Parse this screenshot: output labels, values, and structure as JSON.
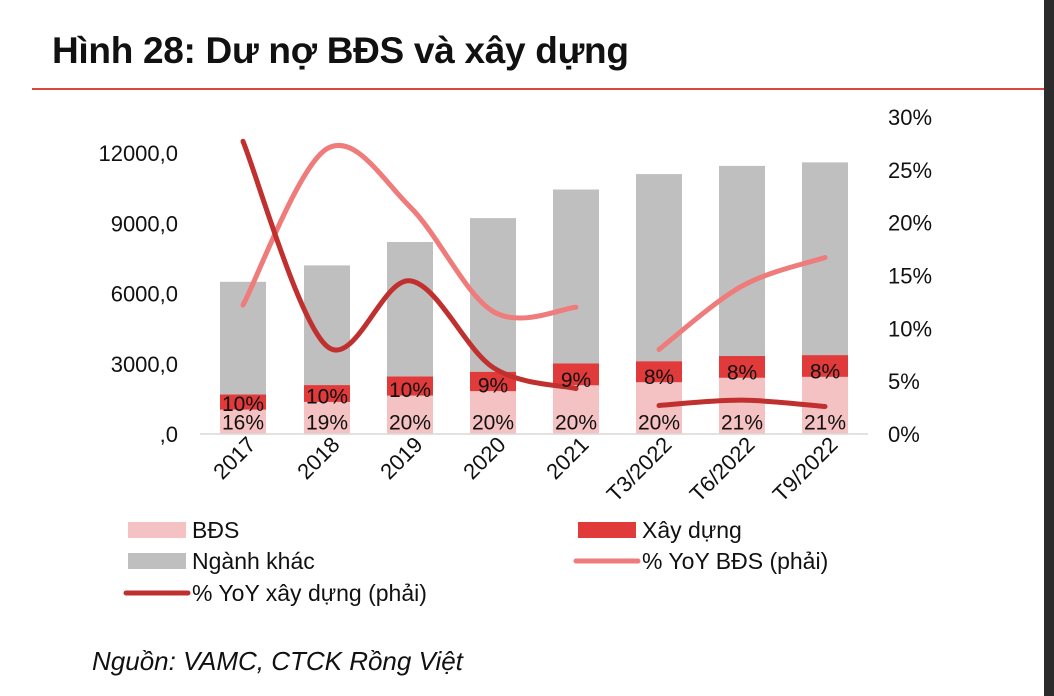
{
  "header": {
    "title": "Hình 28: Dư nợ BĐS và xây dựng"
  },
  "footer": {
    "source": "Nguồn: VAMC, CTCK Rồng Việt"
  },
  "chart_data": {
    "type": "bar",
    "categories": [
      "2017",
      "2018",
      "2019",
      "2020",
      "2021",
      "T3/2022",
      "T6/2022",
      "T9/2022"
    ],
    "series": [
      {
        "name": "BĐS",
        "kind": "stacked-bar",
        "color": "#f4c2c2",
        "values": [
          1040,
          1370,
          1640,
          1830,
          2080,
          2210,
          2400,
          2440
        ],
        "share_labels": [
          "16%",
          "19%",
          "20%",
          "20%",
          "20%",
          "20%",
          "21%",
          "21%"
        ]
      },
      {
        "name": "Xây dựng",
        "kind": "stacked-bar",
        "color": "#e03a3a",
        "values": [
          650,
          720,
          820,
          830,
          940,
          900,
          930,
          930
        ],
        "share_labels": [
          "10%",
          "10%",
          "10%",
          "9%",
          "9%",
          "8%",
          "8%",
          "8%"
        ]
      },
      {
        "name": "Ngành khác",
        "kind": "stacked-bar",
        "color": "#bfbfbf",
        "values": [
          4810,
          5110,
          5740,
          6560,
          7420,
          7990,
          8120,
          8230
        ]
      },
      {
        "name": "% YoY BĐS (phải)",
        "kind": "line",
        "axis": "right",
        "color": "#ef7b7b",
        "values": [
          0.122,
          0.27,
          0.215,
          0.116,
          0.12,
          0.08,
          0.14,
          0.167
        ]
      },
      {
        "name": "% YoY xây dựng (phải)",
        "kind": "line",
        "axis": "right",
        "color": "#c0302e",
        "values": [
          0.277,
          0.083,
          0.145,
          0.063,
          0.043,
          0.027,
          0.032,
          0.026
        ]
      }
    ],
    "ylim": [
      0,
      12000
    ],
    "y_ticks": [
      ",0",
      "3000,0",
      "6000,0",
      "9000,0",
      "12000,0"
    ],
    "y_tick_values": [
      0,
      3000,
      6000,
      9000,
      12000
    ],
    "y2lim": [
      0,
      0.3
    ],
    "y2_ticks": [
      "0%",
      "5%",
      "10%",
      "15%",
      "20%",
      "25%",
      "30%"
    ],
    "y2_tick_values": [
      0,
      0.05,
      0.1,
      0.15,
      0.2,
      0.25,
      0.3
    ],
    "legend_position": "bottom",
    "grid": false
  }
}
